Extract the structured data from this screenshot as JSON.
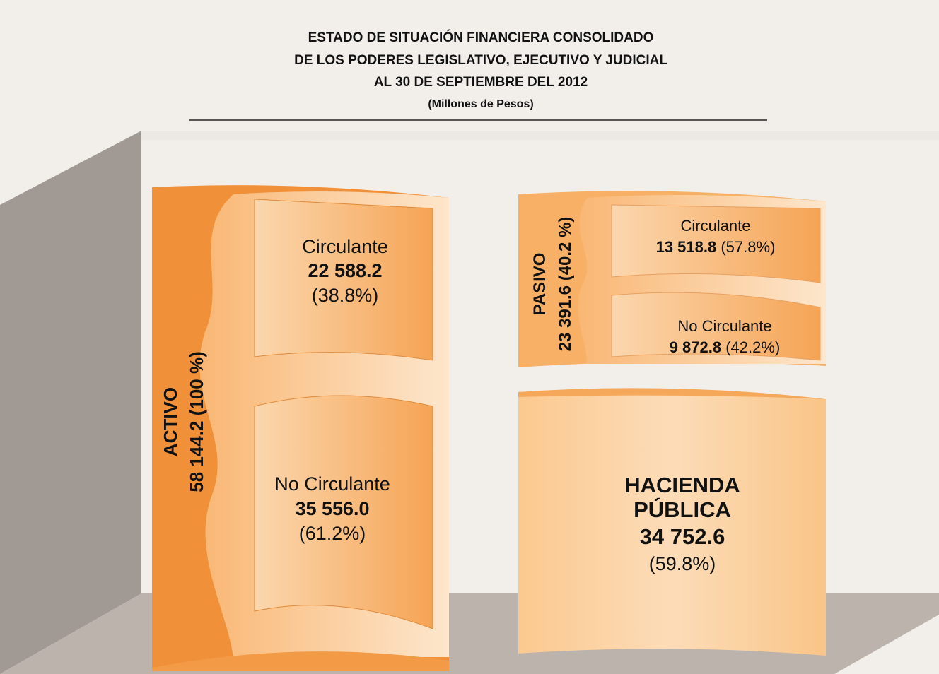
{
  "header": {
    "title_lines": [
      "ESTADO DE SITUACIÓN FINANCIERA CONSOLIDADO",
      "DE LOS PODERES LEGISLATIVO, EJECUTIVO Y JUDICIAL",
      "AL 30 DE SEPTIEMBRE DEL 2012"
    ],
    "subtitle": "(Millones de Pesos)"
  },
  "activo": {
    "label": "ACTIVO",
    "total": "58 144.2 (100 %)",
    "circulante": {
      "label": "Circulante",
      "amount": "22 588.2",
      "percent": "(38.8%)"
    },
    "no_circulante": {
      "label": "No Circulante",
      "amount": "35 556.0",
      "percent": "(61.2%)"
    }
  },
  "pasivo": {
    "label": "PASIVO",
    "total": "23 391.6 (40.2 %)",
    "circulante": {
      "label": "Circulante",
      "amount": "13 518.8",
      "percent": "(57.8%)"
    },
    "no_circulante": {
      "label": "No Circulante",
      "amount": "9 872.8",
      "percent": "(42.2%)"
    }
  },
  "hacienda": {
    "label_lines": [
      "HACIENDA",
      "PÚBLICA"
    ],
    "amount": "34 752.6",
    "percent": "(59.8%)"
  }
}
